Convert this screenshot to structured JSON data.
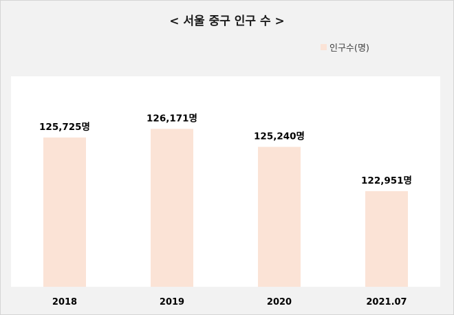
{
  "title": "< 서울 중구 인구 수 >",
  "colors": {
    "bar": "#fbe3d6",
    "background": "#f2f2f2",
    "plot_background": "#ffffff",
    "text": "#000000"
  },
  "legend": {
    "label": "인구수(명)",
    "placement": "top-right"
  },
  "chart_data": {
    "type": "bar",
    "title": "< 서울 중구 인구 수 >",
    "categories": [
      "2018",
      "2019",
      "2020",
      "2021.07"
    ],
    "series": [
      {
        "name": "인구수(명)",
        "values": [
          125725,
          126171,
          125240,
          122951
        ]
      }
    ],
    "data_labels": [
      "125,725명",
      "126,171명",
      "125,240명",
      "122,951명"
    ],
    "ylim": [
      118000,
      128000
    ],
    "grid": false,
    "legend": "top-right"
  }
}
